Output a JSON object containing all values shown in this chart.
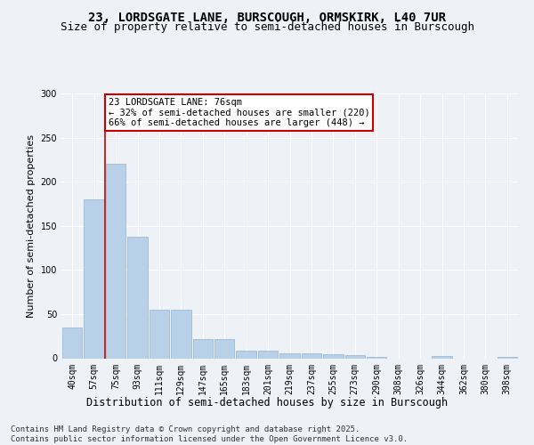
{
  "title1": "23, LORDSGATE LANE, BURSCOUGH, ORMSKIRK, L40 7UR",
  "title2": "Size of property relative to semi-detached houses in Burscough",
  "xlabel": "Distribution of semi-detached houses by size in Burscough",
  "ylabel": "Number of semi-detached properties",
  "categories": [
    "40sqm",
    "57sqm",
    "75sqm",
    "93sqm",
    "111sqm",
    "129sqm",
    "147sqm",
    "165sqm",
    "183sqm",
    "201sqm",
    "219sqm",
    "237sqm",
    "255sqm",
    "273sqm",
    "290sqm",
    "308sqm",
    "326sqm",
    "344sqm",
    "362sqm",
    "380sqm",
    "398sqm"
  ],
  "values": [
    35,
    180,
    220,
    138,
    55,
    55,
    22,
    22,
    9,
    9,
    6,
    6,
    5,
    4,
    2,
    0,
    0,
    3,
    0,
    0,
    2
  ],
  "bar_color": "#b8d0e8",
  "bar_edge_color": "#90b4d0",
  "vline_x_index": 2,
  "vline_color": "#cc0000",
  "annotation_text": "23 LORDSGATE LANE: 76sqm\n← 32% of semi-detached houses are smaller (220)\n66% of semi-detached houses are larger (448) →",
  "annotation_box_color": "#ffffff",
  "annotation_box_edge": "#cc0000",
  "footer": "Contains HM Land Registry data © Crown copyright and database right 2025.\nContains public sector information licensed under the Open Government Licence v3.0.",
  "ylim": [
    0,
    300
  ],
  "yticks": [
    0,
    50,
    100,
    150,
    200,
    250,
    300
  ],
  "bg_color": "#eef2f7",
  "plot_bg_color": "#eef2f7",
  "title1_fontsize": 10,
  "title2_fontsize": 9,
  "xlabel_fontsize": 8.5,
  "ylabel_fontsize": 8,
  "tick_fontsize": 7,
  "footer_fontsize": 6.5,
  "annotation_fontsize": 7.5
}
